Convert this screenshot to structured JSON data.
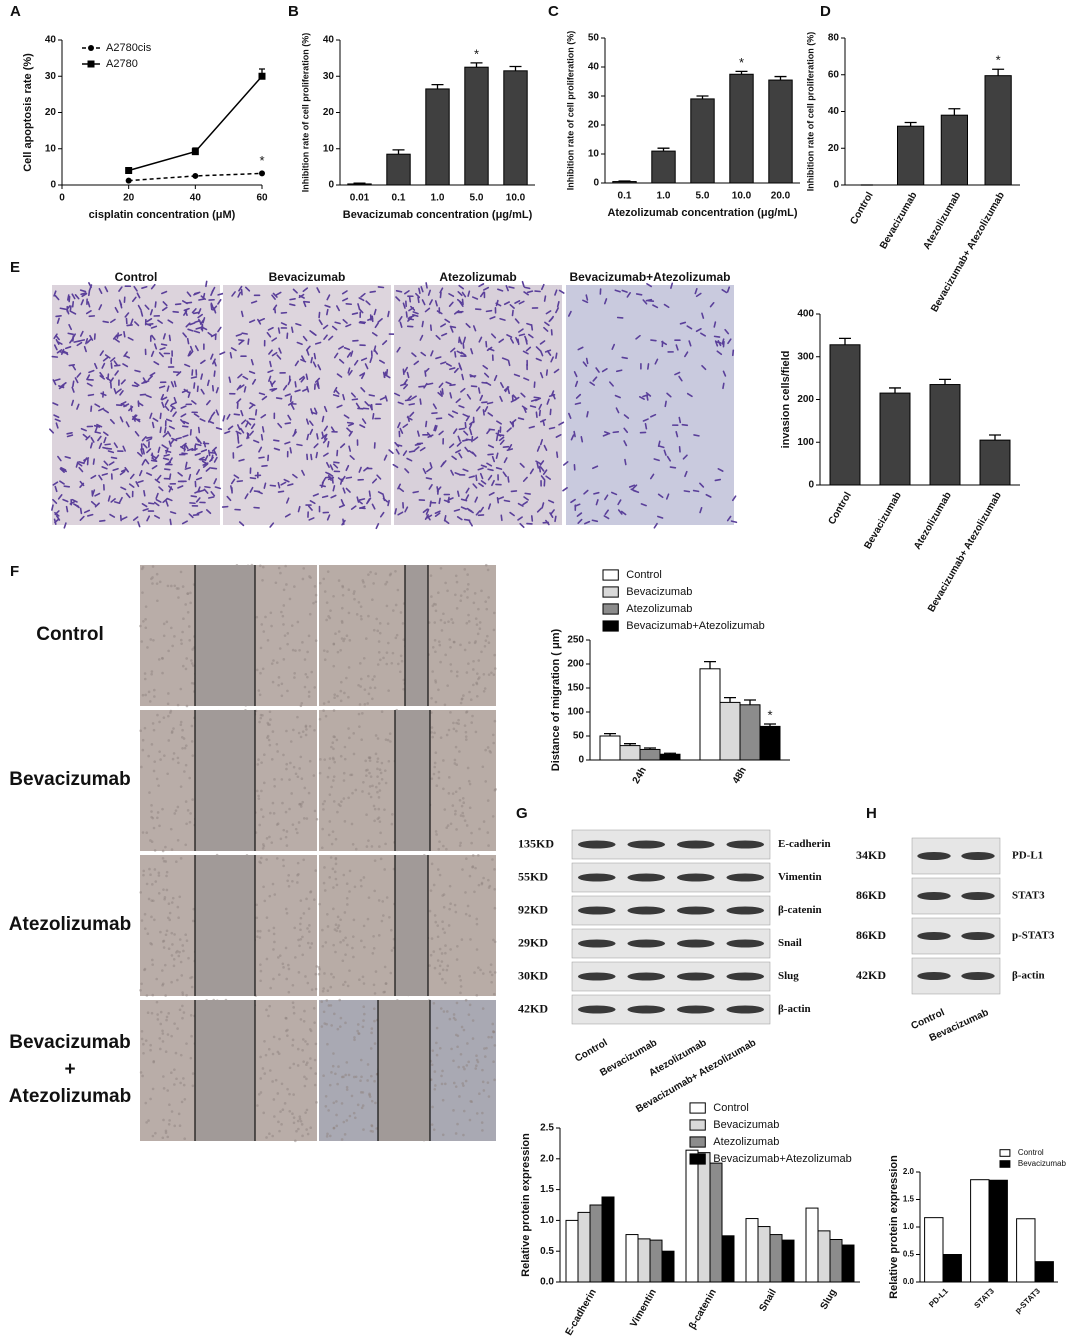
{
  "chart_data": [
    {
      "type": "line",
      "x": [
        20,
        40,
        60
      ],
      "xlim": [
        0,
        60
      ],
      "xticks": [
        0,
        20,
        40,
        60
      ],
      "ylim": [
        0,
        40
      ],
      "yticks": [
        0,
        10,
        20,
        30,
        40
      ],
      "xlabel": "cisplatin concentration (μM)",
      "ylabel": "Cell apoptosis rate (%)",
      "legend": "upper left",
      "series": [
        {
          "name": "A2780cis",
          "color": "#000000",
          "marker": "circle",
          "dashed": true,
          "values": [
            1.2,
            2.5,
            3.2
          ]
        },
        {
          "name": "A2780",
          "color": "#000000",
          "marker": "square",
          "dashed": false,
          "values": [
            4,
            9.2,
            30
          ],
          "errors": [
            0.5,
            1,
            2
          ]
        }
      ],
      "annotations": [
        {
          "text": "*",
          "x": 60,
          "series": "A2780cis"
        }
      ]
    },
    {
      "type": "bar",
      "categories": [
        "0.01",
        "0.1",
        "1.0",
        "5.0",
        "10.0"
      ],
      "values": [
        0.3,
        8.5,
        26.5,
        32.5,
        31.5
      ],
      "errors": [
        0.2,
        1.2,
        1.2,
        1.2,
        1.2
      ],
      "color": "#404040",
      "ylim": [
        0,
        40
      ],
      "yticks": [
        0,
        10,
        20,
        30,
        40
      ],
      "xlabel": "Bevacizumab concentration (μg/mL)",
      "ylabel": "Inhibition rate of cell proliferation (%)",
      "annotations": [
        {
          "text": "*",
          "category": "5.0"
        }
      ]
    },
    {
      "type": "bar",
      "categories": [
        "0.1",
        "1.0",
        "5.0",
        "10.0",
        "20.0"
      ],
      "values": [
        0.5,
        11,
        29,
        37.5,
        35.5
      ],
      "errors": [
        0.2,
        1,
        1,
        1,
        1.2
      ],
      "color": "#404040",
      "ylim": [
        0,
        50
      ],
      "yticks": [
        0,
        10,
        20,
        30,
        40,
        50
      ],
      "xlabel": "Atezolizumab concentration (μg/mL)",
      "ylabel": "Inhibition rate of cell proliferation (%)",
      "annotations": [
        {
          "text": "*",
          "category": "10.0"
        }
      ]
    },
    {
      "type": "bar",
      "categories": [
        "Control",
        "Bevacizumab",
        "Atezolizumab",
        "Bevacizumab+ Atezolizumab"
      ],
      "values": [
        0,
        32,
        38,
        59.5
      ],
      "errors": [
        0,
        2,
        3.5,
        3.5
      ],
      "color": "#404040",
      "ylim": [
        0,
        80
      ],
      "yticks": [
        0,
        20,
        40,
        60,
        80
      ],
      "ylabel": "Inhibition rate of cell proliferation (%)",
      "annotations": [
        {
          "text": "*",
          "category": "Bevacizumab+ Atezolizumab"
        }
      ]
    },
    {
      "type": "bar",
      "categories": [
        "Control",
        "Bevacizumab",
        "Atezolizumab",
        "Bevacizumab+ Atezolizumab"
      ],
      "values": [
        328,
        215,
        235,
        105
      ],
      "errors": [
        15,
        12,
        12,
        12
      ],
      "color": "#404040",
      "ylim": [
        0,
        400
      ],
      "yticks": [
        0,
        100,
        200,
        300,
        400
      ],
      "ylabel": "invasion cells/field"
    },
    {
      "type": "bar",
      "categories": [
        "24h",
        "48h"
      ],
      "ylim": [
        0,
        250
      ],
      "yticks": [
        0,
        50,
        100,
        150,
        200,
        250
      ],
      "ylabel": "Distance of migration ( μm)",
      "legend": "top",
      "series": [
        {
          "name": "Control",
          "color": "#ffffff",
          "values": [
            50,
            190
          ],
          "errors": [
            5,
            15
          ]
        },
        {
          "name": "Bevacizumab",
          "color": "#d9d9d9",
          "values": [
            30,
            120
          ],
          "errors": [
            4,
            10
          ]
        },
        {
          "name": "Atezolizumab",
          "color": "#8c8c8c",
          "values": [
            22,
            115
          ],
          "errors": [
            3,
            10
          ]
        },
        {
          "name": "Bevacizumab+Atezolizumab",
          "color": "#000000",
          "values": [
            12,
            70
          ],
          "errors": [
            2,
            5
          ]
        }
      ],
      "annotations": [
        {
          "text": "*",
          "category": "48h",
          "series": "Bevacizumab+Atezolizumab"
        }
      ]
    },
    {
      "type": "bar",
      "categories": [
        "E-cadherin",
        "Vimentin",
        "β-catenin",
        "Snail",
        "Slug"
      ],
      "ylim": [
        0,
        2.5
      ],
      "yticks": [
        {
          "value": 0,
          "label": "0.0"
        },
        0.5,
        {
          "value": 1,
          "label": "1.0"
        },
        1.5,
        {
          "value": 2,
          "label": "2.0"
        },
        2.5
      ],
      "ylabel": "Relative protein expression",
      "legend": "top",
      "series": [
        {
          "name": "Control",
          "color": "#ffffff",
          "values": [
            1.0,
            0.77,
            2.14,
            1.03,
            1.2
          ]
        },
        {
          "name": "Bevacizumab",
          "color": "#d9d9d9",
          "values": [
            1.13,
            0.7,
            2.1,
            0.9,
            0.83
          ]
        },
        {
          "name": "Atezolizumab",
          "color": "#8c8c8c",
          "values": [
            1.25,
            0.68,
            1.93,
            0.77,
            0.69
          ]
        },
        {
          "name": "Bevacizumab+Atezolizumab",
          "color": "#000000",
          "values": [
            1.38,
            0.5,
            0.75,
            0.68,
            0.6
          ]
        }
      ]
    },
    {
      "type": "bar",
      "categories": [
        "PD-L1",
        "STAT3",
        "p-STAT3"
      ],
      "ylim": [
        0,
        2
      ],
      "yticks": [
        {
          "value": 0,
          "label": "0.0"
        },
        0.5,
        {
          "value": 1,
          "label": "1.0"
        },
        1.5,
        {
          "value": 2,
          "label": "2.0"
        }
      ],
      "ylabel": "Relative protein expression",
      "legend": "upper right",
      "series": [
        {
          "name": "Control",
          "color": "#ffffff",
          "values": [
            1.17,
            1.86,
            1.15
          ]
        },
        {
          "name": "Bevacizumab",
          "color": "#000000",
          "values": [
            0.5,
            1.85,
            0.37
          ]
        }
      ]
    }
  ],
  "figure": {
    "panel_labels": [
      "A",
      "B",
      "C",
      "D",
      "E",
      "F",
      "G",
      "H"
    ],
    "invasion_images": [
      "Control",
      "Bevacizumab",
      "Atezolizumab",
      "Bevacizumab+Atezolizumab"
    ],
    "migration_rows": [
      [
        "Control"
      ],
      [
        "Bevacizumab"
      ],
      [
        "Atezolizumab"
      ],
      [
        "Bevacizumab",
        "+",
        "Atezolizumab"
      ]
    ],
    "blot_g": {
      "sizes": [
        "135KD",
        "55KD",
        "92KD",
        "29KD",
        "30KD",
        "42KD"
      ],
      "proteins": [
        "E-cadherin",
        "Vimentin",
        "β-catenin",
        "Snail",
        "Slug",
        "β-actin"
      ],
      "lanes": [
        "Control",
        "Bevacizumab",
        "Atezolizumab",
        "Bevacizumab+ Atezolizumab"
      ]
    },
    "blot_h": {
      "sizes": [
        "34KD",
        "86KD",
        "86KD",
        "42KD"
      ],
      "proteins": [
        "PD-L1",
        "STAT3",
        "p-STAT3",
        "β-actin"
      ],
      "lanes": [
        "Control",
        "Bevacizumab"
      ]
    }
  }
}
